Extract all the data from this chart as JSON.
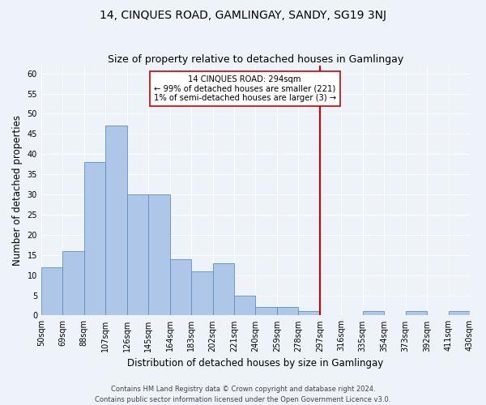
{
  "title": "14, CINQUES ROAD, GAMLINGAY, SANDY, SG19 3NJ",
  "subtitle": "Size of property relative to detached houses in Gamlingay",
  "xlabel": "Distribution of detached houses by size in Gamlingay",
  "ylabel": "Number of detached properties",
  "bar_values": [
    12,
    16,
    38,
    47,
    30,
    30,
    14,
    11,
    13,
    5,
    2,
    2,
    1,
    0,
    0,
    1,
    0,
    1,
    0,
    1
  ],
  "bin_labels": [
    "50sqm",
    "69sqm",
    "88sqm",
    "107sqm",
    "126sqm",
    "145sqm",
    "164sqm",
    "183sqm",
    "202sqm",
    "221sqm",
    "240sqm",
    "259sqm",
    "278sqm",
    "297sqm",
    "316sqm",
    "335sqm",
    "354sqm",
    "373sqm",
    "392sqm",
    "411sqm",
    "430sqm"
  ],
  "bar_color": "#aec6e8",
  "bar_edge_color": "#5b8fc4",
  "vline_color": "#cc0000",
  "annotation_text": "14 CINQUES ROAD: 294sqm\n← 99% of detached houses are smaller (221)\n1% of semi-detached houses are larger (3) →",
  "annotation_box_color": "#ffffff",
  "annotation_border_color": "#cc0000",
  "ylim": [
    0,
    62
  ],
  "yticks": [
    0,
    5,
    10,
    15,
    20,
    25,
    30,
    35,
    40,
    45,
    50,
    55,
    60
  ],
  "footer_text": "Contains HM Land Registry data © Crown copyright and database right 2024.\nContains public sector information licensed under the Open Government Licence v3.0.",
  "background_color": "#edf3f9",
  "grid_color": "#ffffff",
  "title_fontsize": 10,
  "subtitle_fontsize": 9,
  "axis_label_fontsize": 8.5,
  "tick_fontsize": 7,
  "footer_fontsize": 6,
  "vline_xindex": 13
}
